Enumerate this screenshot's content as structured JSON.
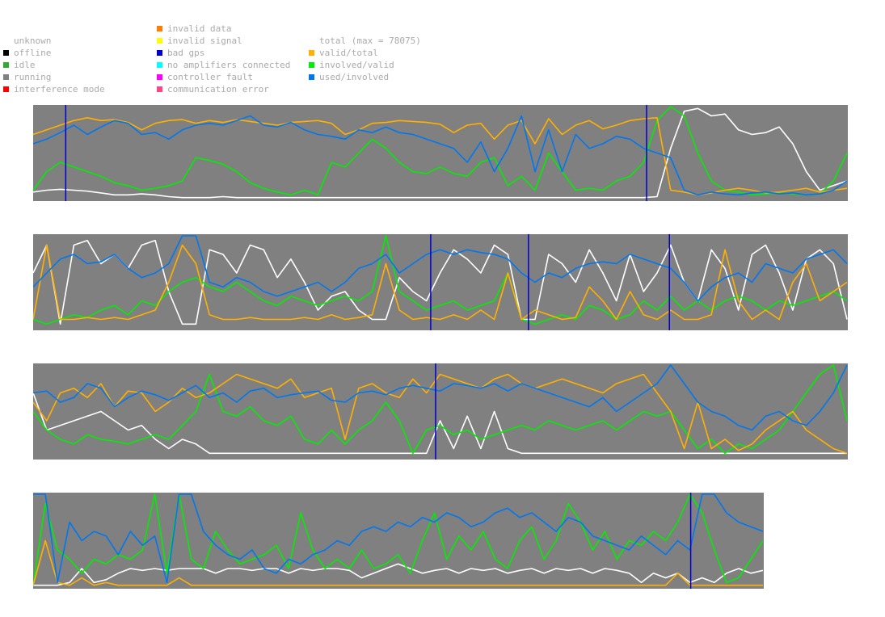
{
  "legend": {
    "status": [
      {
        "label": "unknown",
        "color": "#ffffff"
      },
      {
        "label": "offline",
        "color": "#000000"
      },
      {
        "label": "idle",
        "color": "#33aa33"
      },
      {
        "label": "running",
        "color": "#808080"
      },
      {
        "label": "interference mode",
        "color": "#ff0000"
      }
    ],
    "errors": [
      {
        "label": "invalid data",
        "color": "#ff8000"
      },
      {
        "label": "invalid signal",
        "color": "#ffff00"
      },
      {
        "label": "bad gps",
        "color": "#0000cc"
      },
      {
        "label": "no amplifiers connected",
        "color": "#00ffff"
      },
      {
        "label": "controller fault",
        "color": "#ff00ff"
      },
      {
        "label": "communication error",
        "color": "#ff4488"
      }
    ],
    "series": [
      {
        "label": "total (max = 78075)",
        "color": "#ffffff"
      },
      {
        "label": "valid/total",
        "color": "#ffb000"
      },
      {
        "label": "involved/valid",
        "color": "#00ee00"
      },
      {
        "label": "used/involved",
        "color": "#0077ee"
      }
    ]
  },
  "chart_data": {
    "type": "line",
    "ylim": [
      0,
      1
    ],
    "series_colors": {
      "total": "#ffffff",
      "valid_total": "#ffb000",
      "involved_valid": "#00ee00",
      "used_involved": "#0077ee",
      "bad_gps": "#0000cc"
    },
    "strips": [
      {
        "bad_gps_marks": [
          0.04,
          0.753
        ],
        "total": [
          0.08,
          0.1,
          0.11,
          0.1,
          0.09,
          0.07,
          0.05,
          0.05,
          0.06,
          0.05,
          0.03,
          0.02,
          0.02,
          0.02,
          0.03,
          0.02,
          0.02,
          0.02,
          0.02,
          0.02,
          0.02,
          0.02,
          0.02,
          0.02,
          0.02,
          0.02,
          0.02,
          0.02,
          0.02,
          0.02,
          0.02,
          0.02,
          0.02,
          0.02,
          0.02,
          0.02,
          0.02,
          0.02,
          0.02,
          0.02,
          0.02,
          0.02,
          0.02,
          0.02,
          0.02,
          0.02,
          0.03,
          0.55,
          0.95,
          0.98,
          0.9,
          0.92,
          0.75,
          0.7,
          0.72,
          0.78,
          0.6,
          0.3,
          0.1,
          0.15,
          0.2
        ],
        "valid_total": [
          0.7,
          0.75,
          0.8,
          0.85,
          0.88,
          0.85,
          0.86,
          0.83,
          0.75,
          0.82,
          0.85,
          0.86,
          0.82,
          0.85,
          0.83,
          0.86,
          0.84,
          0.82,
          0.8,
          0.83,
          0.84,
          0.85,
          0.82,
          0.7,
          0.75,
          0.82,
          0.83,
          0.85,
          0.84,
          0.83,
          0.81,
          0.72,
          0.8,
          0.82,
          0.65,
          0.8,
          0.85,
          0.6,
          0.87,
          0.7,
          0.8,
          0.85,
          0.76,
          0.8,
          0.85,
          0.87,
          0.88,
          0.1,
          0.08,
          0.05,
          0.07,
          0.1,
          0.12,
          0.1,
          0.07,
          0.08,
          0.1,
          0.12,
          0.08,
          0.1,
          0.12
        ],
        "involved_valid": [
          0.1,
          0.3,
          0.4,
          0.35,
          0.3,
          0.25,
          0.18,
          0.15,
          0.1,
          0.12,
          0.15,
          0.2,
          0.45,
          0.42,
          0.38,
          0.3,
          0.18,
          0.12,
          0.08,
          0.05,
          0.1,
          0.05,
          0.4,
          0.35,
          0.5,
          0.65,
          0.55,
          0.4,
          0.3,
          0.28,
          0.35,
          0.28,
          0.25,
          0.4,
          0.45,
          0.15,
          0.25,
          0.1,
          0.5,
          0.3,
          0.1,
          0.12,
          0.1,
          0.2,
          0.25,
          0.4,
          0.85,
          1.0,
          0.9,
          0.5,
          0.2,
          0.1,
          0.08,
          0.05,
          0.06,
          0.07,
          0.06,
          0.05,
          0.06,
          0.2,
          0.5
        ],
        "used_involved": [
          0.6,
          0.65,
          0.72,
          0.8,
          0.7,
          0.78,
          0.85,
          0.82,
          0.7,
          0.72,
          0.65,
          0.75,
          0.8,
          0.82,
          0.8,
          0.85,
          0.9,
          0.8,
          0.78,
          0.83,
          0.75,
          0.7,
          0.68,
          0.65,
          0.75,
          0.72,
          0.78,
          0.72,
          0.7,
          0.65,
          0.6,
          0.55,
          0.4,
          0.62,
          0.3,
          0.55,
          0.9,
          0.3,
          0.75,
          0.3,
          0.7,
          0.55,
          0.6,
          0.68,
          0.65,
          0.55,
          0.5,
          0.45,
          0.1,
          0.05,
          0.08,
          0.06,
          0.05,
          0.07,
          0.08,
          0.06,
          0.07,
          0.05,
          0.06,
          0.1,
          0.2
        ]
      },
      {
        "bad_gps_marks": [
          0.488,
          0.608,
          0.781
        ],
        "total": [
          0.6,
          0.9,
          0.05,
          0.9,
          0.95,
          0.7,
          0.8,
          0.65,
          0.9,
          0.95,
          0.4,
          0.05,
          0.05,
          0.85,
          0.8,
          0.6,
          0.9,
          0.85,
          0.55,
          0.75,
          0.5,
          0.2,
          0.35,
          0.4,
          0.2,
          0.1,
          0.1,
          0.55,
          0.4,
          0.3,
          0.6,
          0.85,
          0.75,
          0.6,
          0.9,
          0.8,
          0.1,
          0.1,
          0.8,
          0.7,
          0.5,
          0.85,
          0.6,
          0.3,
          0.8,
          0.4,
          0.6,
          0.9,
          0.5,
          0.3,
          0.85,
          0.65,
          0.2,
          0.8,
          0.9,
          0.6,
          0.2,
          0.75,
          0.85,
          0.7,
          0.1
        ],
        "valid_total": [
          0.1,
          0.9,
          0.1,
          0.1,
          0.12,
          0.1,
          0.12,
          0.1,
          0.15,
          0.2,
          0.5,
          0.9,
          0.7,
          0.15,
          0.1,
          0.1,
          0.12,
          0.1,
          0.1,
          0.1,
          0.12,
          0.1,
          0.15,
          0.1,
          0.12,
          0.15,
          0.7,
          0.2,
          0.1,
          0.12,
          0.1,
          0.15,
          0.1,
          0.2,
          0.1,
          0.6,
          0.1,
          0.2,
          0.15,
          0.1,
          0.12,
          0.45,
          0.3,
          0.1,
          0.4,
          0.15,
          0.1,
          0.2,
          0.1,
          0.1,
          0.15,
          0.85,
          0.3,
          0.1,
          0.2,
          0.1,
          0.5,
          0.7,
          0.3,
          0.4,
          0.5
        ],
        "involved_valid": [
          0.1,
          0.05,
          0.1,
          0.15,
          0.12,
          0.2,
          0.25,
          0.15,
          0.3,
          0.25,
          0.4,
          0.5,
          0.55,
          0.45,
          0.4,
          0.5,
          0.4,
          0.3,
          0.25,
          0.35,
          0.3,
          0.25,
          0.3,
          0.35,
          0.3,
          0.4,
          1.0,
          0.4,
          0.3,
          0.2,
          0.25,
          0.3,
          0.2,
          0.25,
          0.3,
          0.6,
          0.1,
          0.05,
          0.1,
          0.15,
          0.1,
          0.25,
          0.2,
          0.1,
          0.15,
          0.3,
          0.2,
          0.35,
          0.2,
          0.3,
          0.2,
          0.3,
          0.35,
          0.3,
          0.2,
          0.3,
          0.25,
          0.3,
          0.35,
          0.4,
          0.3
        ],
        "used_involved": [
          0.45,
          0.6,
          0.75,
          0.8,
          0.7,
          0.72,
          0.8,
          0.65,
          0.55,
          0.6,
          0.7,
          1.0,
          1.0,
          0.5,
          0.45,
          0.55,
          0.5,
          0.4,
          0.35,
          0.4,
          0.45,
          0.5,
          0.4,
          0.5,
          0.65,
          0.7,
          0.8,
          0.6,
          0.7,
          0.8,
          0.85,
          0.8,
          0.85,
          0.82,
          0.8,
          0.75,
          0.6,
          0.5,
          0.6,
          0.55,
          0.65,
          0.7,
          0.72,
          0.7,
          0.8,
          0.75,
          0.7,
          0.65,
          0.5,
          0.3,
          0.45,
          0.55,
          0.6,
          0.5,
          0.7,
          0.65,
          0.6,
          0.75,
          0.8,
          0.85,
          0.7
        ]
      },
      {
        "bad_gps_marks": [
          0.494
        ],
        "total": [
          0.7,
          0.3,
          0.35,
          0.4,
          0.45,
          0.5,
          0.4,
          0.3,
          0.35,
          0.2,
          0.1,
          0.2,
          0.15,
          0.05,
          0.05,
          0.05,
          0.05,
          0.05,
          0.05,
          0.05,
          0.05,
          0.05,
          0.05,
          0.05,
          0.05,
          0.05,
          0.05,
          0.05,
          0.05,
          0.05,
          0.4,
          0.1,
          0.45,
          0.1,
          0.5,
          0.1,
          0.05,
          0.05,
          0.05,
          0.05,
          0.05,
          0.05,
          0.05,
          0.05,
          0.05,
          0.05,
          0.05,
          0.05,
          0.05,
          0.05,
          0.05,
          0.05,
          0.05,
          0.05,
          0.05,
          0.05,
          0.05,
          0.05,
          0.05,
          0.05,
          0.05
        ],
        "valid_total": [
          0.6,
          0.4,
          0.7,
          0.75,
          0.65,
          0.8,
          0.55,
          0.72,
          0.7,
          0.5,
          0.6,
          0.75,
          0.65,
          0.7,
          0.8,
          0.9,
          0.85,
          0.8,
          0.75,
          0.85,
          0.65,
          0.7,
          0.75,
          0.2,
          0.75,
          0.8,
          0.7,
          0.65,
          0.85,
          0.7,
          0.9,
          0.85,
          0.8,
          0.75,
          0.85,
          0.9,
          0.8,
          0.75,
          0.8,
          0.85,
          0.8,
          0.75,
          0.7,
          0.8,
          0.85,
          0.9,
          0.7,
          0.5,
          0.1,
          0.6,
          0.1,
          0.2,
          0.08,
          0.15,
          0.3,
          0.4,
          0.5,
          0.3,
          0.2,
          0.1,
          0.05
        ],
        "involved_valid": [
          0.5,
          0.3,
          0.2,
          0.15,
          0.25,
          0.2,
          0.18,
          0.15,
          0.2,
          0.25,
          0.2,
          0.35,
          0.5,
          0.9,
          0.5,
          0.45,
          0.55,
          0.4,
          0.35,
          0.45,
          0.2,
          0.15,
          0.3,
          0.15,
          0.3,
          0.4,
          0.6,
          0.4,
          0.05,
          0.3,
          0.35,
          0.25,
          0.3,
          0.2,
          0.25,
          0.3,
          0.35,
          0.3,
          0.4,
          0.35,
          0.3,
          0.35,
          0.4,
          0.3,
          0.4,
          0.5,
          0.45,
          0.5,
          0.3,
          0.1,
          0.2,
          0.05,
          0.15,
          0.1,
          0.2,
          0.3,
          0.5,
          0.7,
          0.9,
          1.0,
          0.4
        ],
        "used_involved": [
          0.7,
          0.72,
          0.6,
          0.65,
          0.8,
          0.75,
          0.55,
          0.65,
          0.72,
          0.68,
          0.62,
          0.7,
          0.78,
          0.65,
          0.7,
          0.6,
          0.72,
          0.75,
          0.65,
          0.68,
          0.7,
          0.72,
          0.62,
          0.6,
          0.7,
          0.72,
          0.68,
          0.75,
          0.78,
          0.75,
          0.72,
          0.8,
          0.78,
          0.75,
          0.8,
          0.72,
          0.8,
          0.75,
          0.7,
          0.65,
          0.6,
          0.55,
          0.65,
          0.5,
          0.6,
          0.7,
          0.8,
          1.0,
          0.8,
          0.6,
          0.5,
          0.45,
          0.35,
          0.3,
          0.45,
          0.5,
          0.4,
          0.35,
          0.5,
          0.7,
          1.0
        ]
      },
      {
        "bad_gps_marks": [
          0.9
        ],
        "total": [
          0.02,
          0.02,
          0.02,
          0.05,
          0.2,
          0.05,
          0.08,
          0.15,
          0.2,
          0.18,
          0.2,
          0.18,
          0.2,
          0.2,
          0.2,
          0.15,
          0.2,
          0.2,
          0.18,
          0.2,
          0.2,
          0.15,
          0.2,
          0.18,
          0.2,
          0.2,
          0.18,
          0.1,
          0.15,
          0.2,
          0.25,
          0.2,
          0.15,
          0.18,
          0.2,
          0.15,
          0.2,
          0.18,
          0.2,
          0.15,
          0.18,
          0.2,
          0.15,
          0.2,
          0.18,
          0.2,
          0.15,
          0.2,
          0.18,
          0.15,
          0.05,
          0.15,
          0.1,
          0.15,
          0.05,
          0.1,
          0.05,
          0.15,
          0.2,
          0.15,
          0.18
        ],
        "valid_total": [
          0.02,
          0.5,
          0.05,
          0.02,
          0.1,
          0.02,
          0.05,
          0.02,
          0.02,
          0.02,
          0.02,
          0.02,
          0.1,
          0.02,
          0.02,
          0.02,
          0.02,
          0.02,
          0.02,
          0.02,
          0.02,
          0.02,
          0.02,
          0.02,
          0.02,
          0.02,
          0.02,
          0.02,
          0.02,
          0.02,
          0.02,
          0.02,
          0.02,
          0.02,
          0.02,
          0.02,
          0.02,
          0.02,
          0.02,
          0.02,
          0.02,
          0.02,
          0.02,
          0.02,
          0.02,
          0.02,
          0.02,
          0.02,
          0.02,
          0.02,
          0.02,
          0.02,
          0.02,
          0.15,
          0.02,
          0.02,
          0.02,
          0.02,
          0.02,
          0.02,
          0.02
        ],
        "involved_valid": [
          0.02,
          0.9,
          0.4,
          0.3,
          0.15,
          0.3,
          0.25,
          0.35,
          0.3,
          0.4,
          1.0,
          0.15,
          1.0,
          0.3,
          0.2,
          0.6,
          0.4,
          0.25,
          0.3,
          0.35,
          0.45,
          0.2,
          0.8,
          0.4,
          0.2,
          0.3,
          0.2,
          0.4,
          0.2,
          0.25,
          0.35,
          0.15,
          0.5,
          0.8,
          0.3,
          0.55,
          0.4,
          0.6,
          0.3,
          0.2,
          0.5,
          0.65,
          0.3,
          0.5,
          0.9,
          0.7,
          0.4,
          0.6,
          0.3,
          0.5,
          0.45,
          0.6,
          0.5,
          0.7,
          1.0,
          0.8,
          0.4,
          0.05,
          0.1,
          0.3,
          0.5
        ],
        "used_involved": [
          1.0,
          1.0,
          0.05,
          0.7,
          0.5,
          0.6,
          0.55,
          0.35,
          0.6,
          0.45,
          0.55,
          0.05,
          1.0,
          1.0,
          0.6,
          0.45,
          0.35,
          0.3,
          0.4,
          0.2,
          0.15,
          0.3,
          0.25,
          0.35,
          0.4,
          0.5,
          0.45,
          0.6,
          0.65,
          0.6,
          0.7,
          0.65,
          0.75,
          0.7,
          0.8,
          0.75,
          0.65,
          0.7,
          0.8,
          0.85,
          0.75,
          0.8,
          0.7,
          0.6,
          0.75,
          0.7,
          0.55,
          0.5,
          0.45,
          0.4,
          0.55,
          0.45,
          0.35,
          0.5,
          0.4,
          1.0,
          1.0,
          0.8,
          0.7,
          0.65,
          0.6
        ]
      }
    ]
  }
}
